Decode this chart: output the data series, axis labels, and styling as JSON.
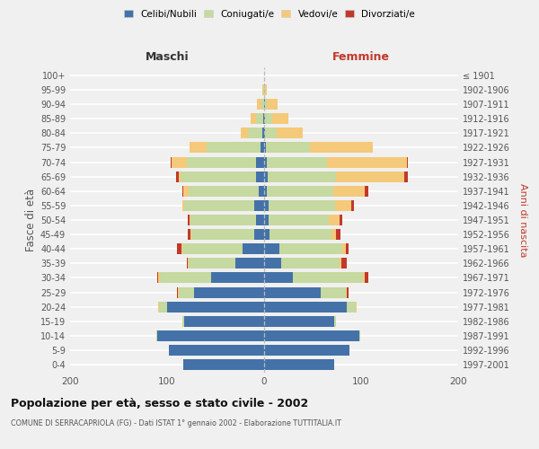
{
  "age_groups": [
    "0-4",
    "5-9",
    "10-14",
    "15-19",
    "20-24",
    "25-29",
    "30-34",
    "35-39",
    "40-44",
    "45-49",
    "50-54",
    "55-59",
    "60-64",
    "65-69",
    "70-74",
    "75-79",
    "80-84",
    "85-89",
    "90-94",
    "95-99",
    "100+"
  ],
  "birth_years": [
    "1997-2001",
    "1992-1996",
    "1987-1991",
    "1982-1986",
    "1977-1981",
    "1972-1976",
    "1967-1971",
    "1962-1966",
    "1957-1961",
    "1952-1956",
    "1947-1951",
    "1942-1946",
    "1937-1941",
    "1932-1936",
    "1927-1931",
    "1922-1926",
    "1917-1921",
    "1912-1916",
    "1907-1911",
    "1902-1906",
    "≤ 1901"
  ],
  "male_celibi": [
    83,
    98,
    110,
    82,
    100,
    72,
    55,
    30,
    22,
    10,
    8,
    10,
    6,
    8,
    8,
    4,
    2,
    1,
    0,
    0,
    0
  ],
  "male_coniugati": [
    0,
    0,
    1,
    2,
    8,
    16,
    52,
    48,
    62,
    65,
    68,
    72,
    72,
    78,
    72,
    55,
    15,
    7,
    3,
    1,
    0
  ],
  "male_vedovi": [
    0,
    0,
    0,
    0,
    1,
    1,
    2,
    1,
    1,
    1,
    1,
    2,
    5,
    2,
    15,
    18,
    7,
    6,
    4,
    1,
    0
  ],
  "male_divorziati": [
    0,
    0,
    0,
    0,
    0,
    1,
    1,
    1,
    5,
    3,
    2,
    0,
    1,
    3,
    1,
    0,
    0,
    0,
    0,
    0,
    0
  ],
  "fem_nubili": [
    72,
    88,
    98,
    72,
    85,
    58,
    30,
    18,
    16,
    6,
    5,
    5,
    3,
    4,
    3,
    2,
    1,
    1,
    1,
    0,
    0
  ],
  "fem_coniugate": [
    0,
    0,
    1,
    2,
    9,
    26,
    72,
    60,
    65,
    63,
    62,
    68,
    68,
    70,
    62,
    45,
    12,
    7,
    2,
    1,
    0
  ],
  "fem_vedove": [
    0,
    0,
    0,
    0,
    1,
    1,
    2,
    2,
    3,
    5,
    11,
    17,
    33,
    70,
    82,
    65,
    27,
    17,
    11,
    2,
    0
  ],
  "fem_divorziate": [
    0,
    0,
    0,
    0,
    0,
    2,
    3,
    5,
    3,
    5,
    3,
    3,
    3,
    4,
    1,
    0,
    0,
    0,
    0,
    0,
    0
  ],
  "colors": {
    "celibi_nubili": "#4472a8",
    "coniugati_e": "#c5d9a0",
    "vedovi_e": "#f5c97a",
    "divorziati_e": "#c0392b"
  },
  "xlim": 200,
  "title": "Popolazione per età, sesso e stato civile - 2002",
  "subtitle": "COMUNE DI SERRACAPRIOLA (FG) - Dati ISTAT 1° gennaio 2002 - Elaborazione TUTTITALIA.IT",
  "ylabel_left": "Fasce di età",
  "ylabel_right": "Anni di nascita",
  "xlabel_left": "Maschi",
  "xlabel_right": "Femmine",
  "legend_labels": [
    "Celibi/Nubili",
    "Coniugati/e",
    "Vedovi/e",
    "Divorziati/e"
  ],
  "background_color": "#f0f0f0"
}
